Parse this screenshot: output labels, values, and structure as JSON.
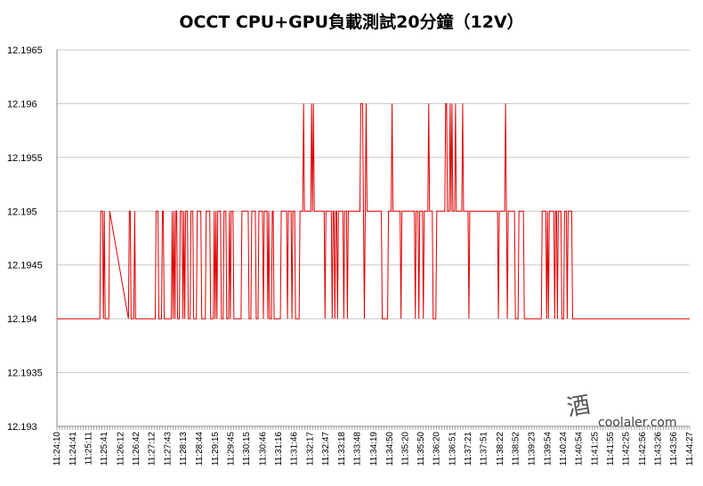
{
  "chart_data": {
    "type": "line",
    "title": "OCCT CPU+GPU負載測試20分鐘（12V）",
    "xlabel": "",
    "ylabel": "",
    "ylim": [
      12.193,
      12.1965
    ],
    "y_ticks": [
      "12.1965",
      "12.196",
      "12.1955",
      "12.195",
      "12.1945",
      "12.194",
      "12.1935",
      "12.193"
    ],
    "grid": true,
    "legend": "none",
    "colors": {
      "series": "#e00000",
      "grid": "#c8c8c8"
    },
    "x_tick_labels": [
      "11:24:10",
      "11:24:41",
      "11:25:11",
      "11:25:41",
      "11:26:12",
      "11:26:42",
      "11:27:12",
      "11:27:43",
      "11:28:13",
      "11:28:44",
      "11:29:15",
      "11:29:45",
      "11:30:15",
      "11:30:46",
      "11:31:16",
      "11:31:46",
      "11:32:17",
      "11:32:47",
      "11:33:18",
      "11:33:48",
      "11:34:19",
      "11:34:50",
      "11:35:20",
      "11:35:50",
      "11:36:20",
      "11:36:51",
      "11:37:21",
      "11:37:51",
      "11:38:22",
      "11:38:52",
      "11:39:23",
      "11:39:54",
      "11:40:24",
      "11:40:54",
      "11:41:25",
      "11:41:55",
      "11:42:25",
      "11:42:56",
      "11:43:26",
      "11:43:56",
      "11:44:27"
    ],
    "x_start": "11:24:10",
    "x_end": "11:44:27",
    "series": [
      {
        "values": [
          [
            0,
            12.194
          ],
          [
            48,
            12.194
          ],
          [
            49,
            12.195
          ],
          [
            51,
            12.195
          ],
          [
            52,
            12.194
          ],
          [
            53,
            12.195
          ],
          [
            54,
            12.194
          ],
          [
            58,
            12.194
          ],
          [
            59,
            12.195
          ],
          [
            80,
            12.194
          ],
          [
            81,
            12.195
          ],
          [
            82,
            12.195
          ],
          [
            83,
            12.194
          ],
          [
            86,
            12.194
          ],
          [
            87,
            12.195
          ],
          [
            88,
            12.194
          ],
          [
            110,
            12.194
          ],
          [
            111,
            12.195
          ],
          [
            113,
            12.195
          ],
          [
            114,
            12.194
          ],
          [
            117,
            12.194
          ],
          [
            118,
            12.195
          ],
          [
            119,
            12.195
          ],
          [
            120,
            12.194
          ],
          [
            128,
            12.194
          ],
          [
            129,
            12.195
          ],
          [
            130,
            12.194
          ],
          [
            131,
            12.195
          ],
          [
            132,
            12.194
          ],
          [
            133,
            12.195
          ],
          [
            134,
            12.195
          ],
          [
            135,
            12.194
          ],
          [
            137,
            12.194
          ],
          [
            138,
            12.195
          ],
          [
            140,
            12.195
          ],
          [
            141,
            12.194
          ],
          [
            142,
            12.195
          ],
          [
            143,
            12.194
          ],
          [
            144,
            12.195
          ],
          [
            146,
            12.195
          ],
          [
            147,
            12.194
          ],
          [
            149,
            12.194
          ],
          [
            150,
            12.195
          ],
          [
            152,
            12.195
          ],
          [
            153,
            12.194
          ],
          [
            156,
            12.194
          ],
          [
            157,
            12.195
          ],
          [
            161,
            12.195
          ],
          [
            162,
            12.194
          ],
          [
            166,
            12.194
          ],
          [
            167,
            12.195
          ],
          [
            171,
            12.195
          ],
          [
            172,
            12.194
          ],
          [
            175,
            12.194
          ],
          [
            176,
            12.195
          ],
          [
            177,
            12.194
          ],
          [
            178,
            12.195
          ],
          [
            179,
            12.194
          ],
          [
            180,
            12.195
          ],
          [
            183,
            12.195
          ],
          [
            184,
            12.194
          ],
          [
            186,
            12.194
          ],
          [
            187,
            12.195
          ],
          [
            189,
            12.195
          ],
          [
            190,
            12.194
          ],
          [
            192,
            12.194
          ],
          [
            193,
            12.195
          ],
          [
            194,
            12.194
          ],
          [
            195,
            12.195
          ],
          [
            197,
            12.195
          ],
          [
            198,
            12.194
          ],
          [
            206,
            12.194
          ],
          [
            207,
            12.195
          ],
          [
            214,
            12.195
          ],
          [
            215,
            12.194
          ],
          [
            217,
            12.194
          ],
          [
            218,
            12.195
          ],
          [
            222,
            12.195
          ],
          [
            223,
            12.194
          ],
          [
            225,
            12.194
          ],
          [
            226,
            12.195
          ],
          [
            230,
            12.195
          ],
          [
            231,
            12.194
          ],
          [
            232,
            12.195
          ],
          [
            235,
            12.195
          ],
          [
            236,
            12.194
          ],
          [
            237,
            12.195
          ],
          [
            238,
            12.194
          ],
          [
            240,
            12.194
          ],
          [
            241,
            12.195
          ],
          [
            242,
            12.195
          ],
          [
            243,
            12.194
          ],
          [
            250,
            12.194
          ],
          [
            251,
            12.195
          ],
          [
            257,
            12.195
          ],
          [
            258,
            12.194
          ],
          [
            259,
            12.195
          ],
          [
            262,
            12.195
          ],
          [
            263,
            12.194
          ],
          [
            264,
            12.195
          ],
          [
            266,
            12.195
          ],
          [
            267,
            12.194
          ],
          [
            271,
            12.194
          ],
          [
            272,
            12.195
          ],
          [
            275,
            12.195
          ],
          [
            276,
            12.196
          ],
          [
            277,
            12.195
          ],
          [
            284,
            12.195
          ],
          [
            285,
            12.196
          ],
          [
            286,
            12.195
          ],
          [
            287,
            12.196
          ],
          [
            288,
            12.195
          ],
          [
            299,
            12.195
          ],
          [
            300,
            12.194
          ],
          [
            301,
            12.195
          ],
          [
            307,
            12.195
          ],
          [
            308,
            12.194
          ],
          [
            309,
            12.195
          ],
          [
            310,
            12.195
          ],
          [
            311,
            12.194
          ],
          [
            312,
            12.195
          ],
          [
            313,
            12.195
          ],
          [
            314,
            12.194
          ],
          [
            315,
            12.195
          ],
          [
            320,
            12.195
          ],
          [
            321,
            12.194
          ],
          [
            322,
            12.195
          ],
          [
            324,
            12.195
          ],
          [
            325,
            12.194
          ],
          [
            326,
            12.195
          ],
          [
            339,
            12.195
          ],
          [
            340,
            12.196
          ],
          [
            342,
            12.196
          ],
          [
            343,
            12.195
          ],
          [
            344,
            12.194
          ],
          [
            345,
            12.195
          ],
          [
            346,
            12.196
          ],
          [
            347,
            12.195
          ],
          [
            363,
            12.195
          ],
          [
            364,
            12.194
          ],
          [
            370,
            12.194
          ],
          [
            371,
            12.195
          ],
          [
            374,
            12.195
          ],
          [
            375,
            12.196
          ],
          [
            376,
            12.195
          ],
          [
            384,
            12.195
          ],
          [
            385,
            12.194
          ],
          [
            386,
            12.195
          ],
          [
            400,
            12.195
          ],
          [
            401,
            12.194
          ],
          [
            402,
            12.195
          ],
          [
            404,
            12.195
          ],
          [
            405,
            12.194
          ],
          [
            406,
            12.195
          ],
          [
            409,
            12.195
          ],
          [
            410,
            12.194
          ],
          [
            411,
            12.195
          ],
          [
            415,
            12.195
          ],
          [
            416,
            12.196
          ],
          [
            417,
            12.195
          ],
          [
            420,
            12.195
          ],
          [
            421,
            12.194
          ],
          [
            424,
            12.194
          ],
          [
            425,
            12.195
          ],
          [
            434,
            12.195
          ],
          [
            435,
            12.196
          ],
          [
            436,
            12.196
          ],
          [
            437,
            12.195
          ],
          [
            439,
            12.195
          ],
          [
            440,
            12.196
          ],
          [
            441,
            12.195
          ],
          [
            442,
            12.196
          ],
          [
            443,
            12.195
          ],
          [
            444,
            12.195
          ],
          [
            445,
            12.195
          ],
          [
            446,
            12.196
          ],
          [
            447,
            12.195
          ],
          [
            453,
            12.195
          ],
          [
            454,
            12.196
          ],
          [
            455,
            12.195
          ],
          [
            460,
            12.195
          ],
          [
            461,
            12.194
          ],
          [
            462,
            12.195
          ],
          [
            493,
            12.195
          ],
          [
            494,
            12.194
          ],
          [
            495,
            12.195
          ],
          [
            501,
            12.195
          ],
          [
            502,
            12.196
          ],
          [
            503,
            12.195
          ],
          [
            504,
            12.194
          ],
          [
            505,
            12.195
          ],
          [
            512,
            12.195
          ],
          [
            513,
            12.194
          ],
          [
            516,
            12.194
          ],
          [
            517,
            12.195
          ],
          [
            522,
            12.195
          ],
          [
            523,
            12.194
          ],
          [
            542,
            12.194
          ],
          [
            543,
            12.195
          ],
          [
            547,
            12.195
          ],
          [
            548,
            12.194
          ],
          [
            549,
            12.195
          ],
          [
            550,
            12.194
          ],
          [
            551,
            12.195
          ],
          [
            556,
            12.195
          ],
          [
            557,
            12.194
          ],
          [
            558,
            12.195
          ],
          [
            559,
            12.195
          ],
          [
            560,
            12.194
          ],
          [
            561,
            12.195
          ],
          [
            564,
            12.195
          ],
          [
            565,
            12.194
          ],
          [
            567,
            12.194
          ],
          [
            568,
            12.195
          ],
          [
            570,
            12.195
          ],
          [
            571,
            12.194
          ],
          [
            572,
            12.195
          ],
          [
            576,
            12.195
          ],
          [
            577,
            12.194
          ],
          [
            578,
            12.194
          ],
          [
            579,
            12.194
          ],
          [
            708,
            12.194
          ]
        ]
      }
    ]
  },
  "watermark": {
    "text": "coolaler.com",
    "glyph": "酒"
  }
}
